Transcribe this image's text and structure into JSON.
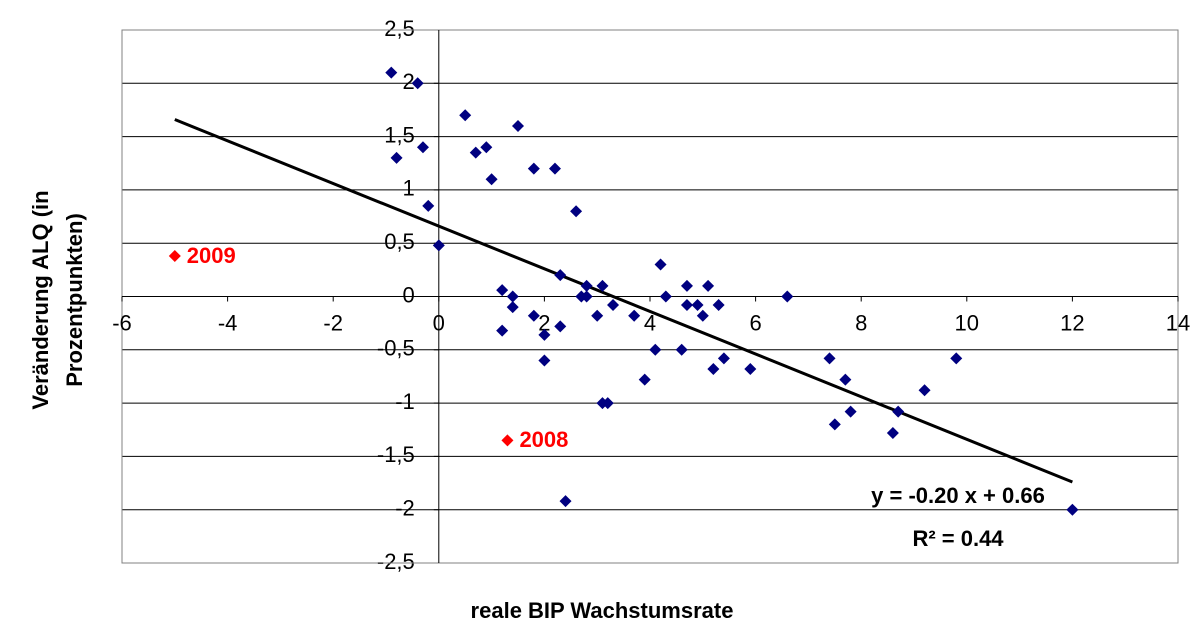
{
  "chart_data": {
    "type": "scatter",
    "x_label": "reale BIP Wachstumsrate",
    "y_label": [
      "Veränderung ALQ (in",
      "Prozentpunkten)"
    ],
    "xlim": [
      -6,
      14
    ],
    "ylim": [
      -2.5,
      2.5
    ],
    "xticks": [
      -6,
      -4,
      -2,
      0,
      2,
      4,
      6,
      8,
      10,
      12,
      14
    ],
    "yticks": [
      {
        "value": 2.5,
        "label": "2,5"
      },
      2,
      {
        "value": 1.5,
        "label": "1,5"
      },
      1,
      {
        "value": 0.5,
        "label": "0,5"
      },
      0,
      {
        "value": -0.5,
        "label": "-0,5"
      },
      -1,
      {
        "value": -1.5,
        "label": "-1,5"
      },
      -2,
      {
        "value": -2.5,
        "label": "-2,5"
      }
    ],
    "grid": true,
    "color": "#000080",
    "x": [
      -0.9,
      -0.4,
      -0.8,
      -0.3,
      -0.2,
      0.0,
      0.5,
      0.7,
      0.9,
      1.0,
      1.5,
      1.8,
      2.2,
      2.6,
      1.2,
      1.4,
      1.4,
      1.2,
      1.8,
      2.0,
      2.0,
      2.3,
      2.3,
      2.8,
      2.7,
      2.8,
      3.0,
      3.1,
      3.3,
      3.7,
      3.1,
      3.2,
      3.9,
      4.1,
      4.2,
      4.3,
      4.6,
      4.7,
      4.7,
      4.9,
      5.0,
      5.1,
      5.3,
      5.2,
      5.4,
      5.9,
      6.6,
      7.4,
      7.5,
      7.7,
      7.8,
      8.6,
      8.7,
      9.2,
      9.8,
      12.0,
      2.4
    ],
    "y": [
      2.1,
      2.0,
      1.3,
      1.4,
      0.85,
      0.48,
      1.7,
      1.35,
      1.4,
      1.1,
      1.6,
      1.2,
      1.2,
      0.8,
      0.06,
      0.0,
      -0.1,
      -0.32,
      -0.18,
      -0.36,
      -0.6,
      0.2,
      -0.28,
      0.1,
      0.0,
      0.0,
      -0.18,
      0.1,
      -0.08,
      -0.18,
      -1.0,
      -1.0,
      -0.78,
      -0.5,
      0.3,
      0.0,
      -0.5,
      -0.08,
      0.1,
      -0.08,
      -0.18,
      0.1,
      -0.08,
      -0.68,
      -0.58,
      -0.68,
      0.0,
      -0.58,
      -1.2,
      -0.78,
      -1.08,
      -1.28,
      -1.08,
      -0.88,
      -0.58,
      -2.0,
      -1.92
    ],
    "highlights": [
      {
        "x": -5.0,
        "y": 0.38,
        "label": "2009",
        "color": "#ff0000"
      },
      {
        "x": 1.3,
        "y": -1.35,
        "label": "2008",
        "color": "#ff0000"
      }
    ],
    "trendline": {
      "slope": -0.2,
      "intercept": 0.66,
      "equation": "y = -0.20 x + 0.66",
      "r2_label": "R² = 0.44"
    }
  }
}
